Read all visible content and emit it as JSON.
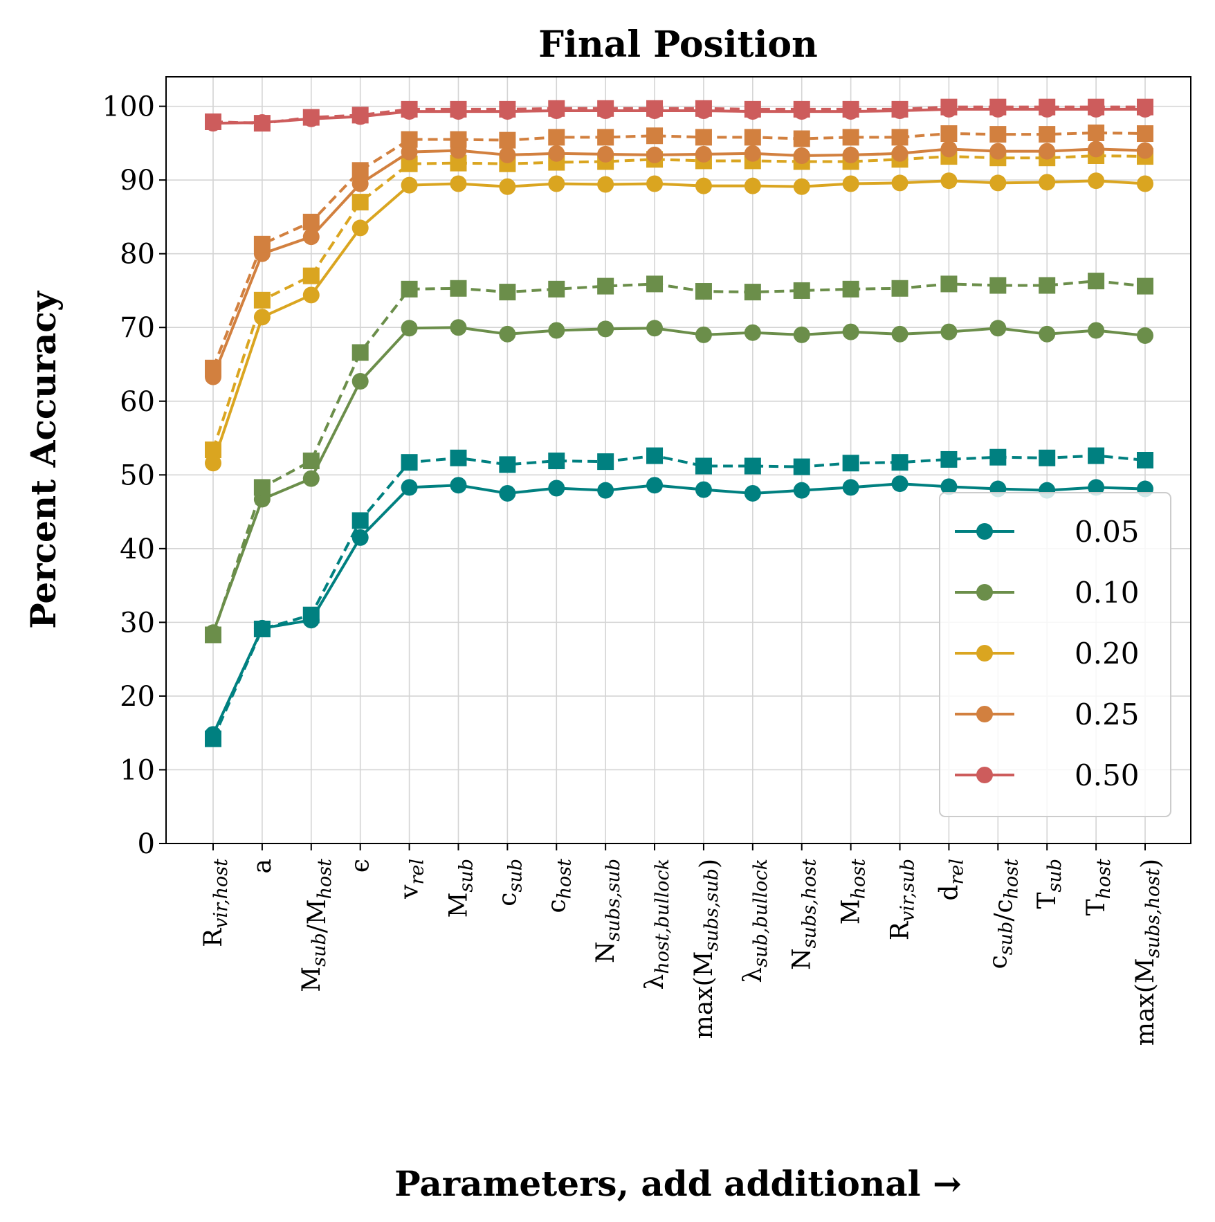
{
  "chart_data": {
    "type": "line",
    "title": "Final Position",
    "xlabel": "Parameters, add additional →",
    "ylabel": "Percent Accuracy",
    "ylim": [
      0,
      104
    ],
    "yticks": [
      0,
      10,
      20,
      30,
      40,
      50,
      60,
      70,
      80,
      90,
      100
    ],
    "grid": true,
    "legend_position": "lower-right",
    "categories": [
      "R_{vir,host}",
      "a",
      "M_{sub}/M_{host}",
      "ϵ",
      "v_{rel}",
      "M_{sub}",
      "c_{sub}",
      "c_{host}",
      "N_{subs,sub}",
      "λ_{host,bullock}",
      "max(M_{subs,sub})",
      "λ_{sub,bullock}",
      "N_{subs,host}",
      "M_{host}",
      "R_{vir,sub}",
      "d_{rel}",
      "c_{sub}/c_{host}",
      "T_{sub}",
      "T_{host}",
      "max(M_{subs,host})"
    ],
    "series": [
      {
        "name": "0.05",
        "color": "#008080",
        "marker": "circle",
        "linestyle": "solid",
        "values": [
          14.8,
          29.2,
          30.3,
          41.5,
          48.3,
          48.6,
          47.5,
          48.2,
          47.9,
          48.6,
          48.0,
          47.5,
          47.9,
          48.3,
          48.8,
          48.4,
          48.1,
          47.9,
          48.3,
          48.1
        ]
      },
      {
        "name": "",
        "color": "#008080",
        "marker": "square",
        "linestyle": "dashed",
        "values": [
          14.2,
          29.1,
          31.0,
          43.8,
          51.7,
          52.3,
          51.4,
          51.9,
          51.8,
          52.6,
          51.2,
          51.2,
          51.1,
          51.6,
          51.7,
          52.1,
          52.4,
          52.3,
          52.6,
          52.0
        ]
      },
      {
        "name": "0.10",
        "color": "#6b8e4a",
        "marker": "circle",
        "linestyle": "solid",
        "values": [
          28.6,
          46.7,
          49.5,
          62.7,
          69.9,
          70.0,
          69.1,
          69.6,
          69.8,
          69.9,
          69.0,
          69.3,
          69.0,
          69.4,
          69.1,
          69.4,
          69.9,
          69.1,
          69.6,
          68.9
        ]
      },
      {
        "name": "",
        "color": "#6b8e4a",
        "marker": "square",
        "linestyle": "dashed",
        "values": [
          28.3,
          48.3,
          51.9,
          66.6,
          75.2,
          75.3,
          74.8,
          75.2,
          75.6,
          75.9,
          74.9,
          74.8,
          75.0,
          75.2,
          75.3,
          75.9,
          75.7,
          75.7,
          76.3,
          75.6
        ]
      },
      {
        "name": "0.20",
        "color": "#daa520",
        "marker": "circle",
        "linestyle": "solid",
        "values": [
          51.6,
          71.4,
          74.4,
          83.5,
          89.3,
          89.5,
          89.1,
          89.5,
          89.4,
          89.5,
          89.2,
          89.2,
          89.1,
          89.5,
          89.6,
          89.9,
          89.6,
          89.7,
          89.9,
          89.5
        ]
      },
      {
        "name": "",
        "color": "#daa520",
        "marker": "square",
        "linestyle": "dashed",
        "values": [
          53.4,
          73.7,
          77.0,
          87.0,
          92.2,
          92.3,
          92.2,
          92.4,
          92.5,
          92.8,
          92.6,
          92.6,
          92.5,
          92.5,
          92.8,
          93.2,
          93.0,
          93.0,
          93.3,
          93.2
        ]
      },
      {
        "name": "0.25",
        "color": "#d2803f",
        "marker": "circle",
        "linestyle": "solid",
        "values": [
          63.3,
          80.0,
          82.3,
          89.5,
          93.8,
          94.0,
          93.4,
          93.6,
          93.5,
          93.4,
          93.5,
          93.6,
          93.3,
          93.4,
          93.6,
          94.2,
          93.9,
          93.9,
          94.2,
          94.0
        ]
      },
      {
        "name": "",
        "color": "#d2803f",
        "marker": "square",
        "linestyle": "dashed",
        "values": [
          64.5,
          81.3,
          84.3,
          91.3,
          95.5,
          95.5,
          95.4,
          95.8,
          95.8,
          96.0,
          95.8,
          95.8,
          95.6,
          95.8,
          95.8,
          96.3,
          96.2,
          96.2,
          96.4,
          96.3
        ]
      },
      {
        "name": "0.50",
        "color": "#cd5c5c",
        "marker": "circle",
        "linestyle": "solid",
        "values": [
          97.7,
          97.8,
          98.3,
          98.6,
          99.3,
          99.3,
          99.3,
          99.4,
          99.4,
          99.4,
          99.4,
          99.3,
          99.3,
          99.3,
          99.4,
          99.6,
          99.6,
          99.6,
          99.6,
          99.6
        ]
      },
      {
        "name": "",
        "color": "#cd5c5c",
        "marker": "square",
        "linestyle": "dashed",
        "values": [
          97.9,
          97.7,
          98.5,
          98.8,
          99.6,
          99.6,
          99.6,
          99.7,
          99.7,
          99.7,
          99.7,
          99.6,
          99.6,
          99.6,
          99.6,
          99.9,
          99.9,
          99.9,
          99.9,
          99.9
        ]
      }
    ]
  }
}
